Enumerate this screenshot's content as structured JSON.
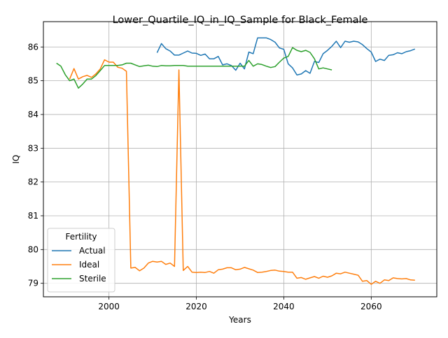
{
  "chart_data": {
    "type": "line",
    "title": "Lower_Quartile_IQ_in_IQ_Sample for Black_Female",
    "xlabel": "Years",
    "ylabel": "IQ",
    "xlim": [
      1985,
      2075
    ],
    "ylim": [
      78.6,
      86.75
    ],
    "x_ticks": [
      2000,
      2020,
      2040,
      2060
    ],
    "y_ticks": [
      79,
      80,
      81,
      82,
      83,
      84,
      85,
      86
    ],
    "grid": true,
    "legend": {
      "title": "Fertility",
      "position": "lower-left"
    },
    "series": [
      {
        "name": "Actual",
        "color": "#1f77b4",
        "x": [
          2011,
          2012,
          2013,
          2014,
          2015,
          2016,
          2017,
          2018,
          2019,
          2020,
          2021,
          2022,
          2023,
          2024,
          2025,
          2026,
          2027,
          2028,
          2029,
          2030,
          2031,
          2032,
          2033,
          2034,
          2035,
          2036,
          2037,
          2038,
          2039,
          2040,
          2041,
          2042,
          2043,
          2044,
          2045,
          2046,
          2047,
          2048,
          2049,
          2050,
          2051,
          2052,
          2053,
          2054,
          2055,
          2056,
          2057,
          2058,
          2059,
          2060,
          2061,
          2062,
          2063,
          2064,
          2065,
          2066,
          2067,
          2068,
          2069,
          2070
        ],
        "values": [
          85.83,
          86.1,
          85.95,
          85.88,
          85.76,
          85.76,
          85.82,
          85.88,
          85.82,
          85.81,
          85.75,
          85.79,
          85.65,
          85.65,
          85.72,
          85.47,
          85.5,
          85.45,
          85.31,
          85.52,
          85.35,
          85.85,
          85.8,
          86.27,
          86.27,
          86.27,
          86.22,
          86.14,
          85.97,
          85.93,
          85.5,
          85.38,
          85.17,
          85.2,
          85.3,
          85.22,
          85.57,
          85.54,
          85.8,
          85.9,
          86.02,
          86.17,
          85.98,
          86.17,
          86.14,
          86.17,
          86.15,
          86.07,
          85.95,
          85.85,
          85.57,
          85.64,
          85.6,
          85.75,
          85.77,
          85.83,
          85.8,
          85.86,
          85.89,
          85.94
        ]
      },
      {
        "name": "Ideal",
        "color": "#ff7f0e",
        "x": [
          1991,
          1992,
          1993,
          1994,
          1995,
          1996,
          1997,
          1998,
          1999,
          2000,
          2001,
          2002,
          2003,
          2004,
          2005,
          2006,
          2007,
          2008,
          2009,
          2010,
          2011,
          2012,
          2013,
          2014,
          2015,
          2016,
          2017,
          2018,
          2019,
          2020,
          2021,
          2022,
          2023,
          2024,
          2025,
          2026,
          2027,
          2028,
          2029,
          2030,
          2031,
          2032,
          2033,
          2034,
          2035,
          2036,
          2037,
          2038,
          2039,
          2040,
          2041,
          2042,
          2043,
          2044,
          2045,
          2046,
          2047,
          2048,
          2049,
          2050,
          2051,
          2052,
          2053,
          2054,
          2055,
          2056,
          2057,
          2058,
          2059,
          2060,
          2061,
          2062,
          2063,
          2064,
          2065,
          2066,
          2067,
          2068,
          2069,
          2070
        ],
        "values": [
          85.05,
          85.36,
          85.05,
          85.12,
          85.16,
          85.1,
          85.2,
          85.35,
          85.62,
          85.55,
          85.55,
          85.4,
          85.37,
          85.28,
          79.45,
          79.47,
          79.37,
          79.45,
          79.6,
          79.65,
          79.63,
          79.65,
          79.56,
          79.6,
          79.5,
          85.32,
          79.38,
          79.5,
          79.33,
          79.32,
          79.33,
          79.32,
          79.35,
          79.3,
          79.4,
          79.42,
          79.46,
          79.46,
          79.4,
          79.42,
          79.47,
          79.43,
          79.39,
          79.32,
          79.33,
          79.35,
          79.38,
          79.39,
          79.36,
          79.35,
          79.33,
          79.33,
          79.15,
          79.17,
          79.12,
          79.16,
          79.2,
          79.15,
          79.21,
          79.18,
          79.22,
          79.3,
          79.28,
          79.33,
          79.3,
          79.27,
          79.24,
          79.06,
          79.08,
          78.97,
          79.06,
          79.0,
          79.1,
          79.08,
          79.16,
          79.14,
          79.13,
          79.14,
          79.1,
          79.09
        ]
      },
      {
        "name": "Sterile",
        "color": "#2ca02c",
        "x": [
          1988,
          1989,
          1990,
          1991,
          1992,
          1993,
          1994,
          1995,
          1996,
          1997,
          1998,
          1999,
          2000,
          2001,
          2002,
          2003,
          2004,
          2005,
          2006,
          2007,
          2008,
          2009,
          2010,
          2011,
          2012,
          2013,
          2014,
          2015,
          2016,
          2017,
          2018,
          2019,
          2020,
          2021,
          2022,
          2023,
          2024,
          2025,
          2026,
          2027,
          2028,
          2029,
          2030,
          2031,
          2032,
          2033,
          2034,
          2035,
          2036,
          2037,
          2038,
          2039,
          2040,
          2041,
          2042,
          2043,
          2044,
          2045,
          2046,
          2047,
          2048,
          2049,
          2050,
          2051
        ],
        "values": [
          85.52,
          85.43,
          85.18,
          85.0,
          85.05,
          84.78,
          84.9,
          85.05,
          85.05,
          85.15,
          85.3,
          85.45,
          85.45,
          85.45,
          85.45,
          85.47,
          85.52,
          85.52,
          85.47,
          85.42,
          85.44,
          85.46,
          85.43,
          85.42,
          85.45,
          85.44,
          85.44,
          85.45,
          85.45,
          85.45,
          85.43,
          85.43,
          85.43,
          85.43,
          85.43,
          85.43,
          85.43,
          85.43,
          85.43,
          85.43,
          85.43,
          85.43,
          85.43,
          85.43,
          85.6,
          85.43,
          85.5,
          85.48,
          85.43,
          85.39,
          85.42,
          85.55,
          85.67,
          85.72,
          85.98,
          85.9,
          85.86,
          85.9,
          85.84,
          85.65,
          85.35,
          85.38,
          85.35,
          85.32
        ]
      }
    ]
  }
}
